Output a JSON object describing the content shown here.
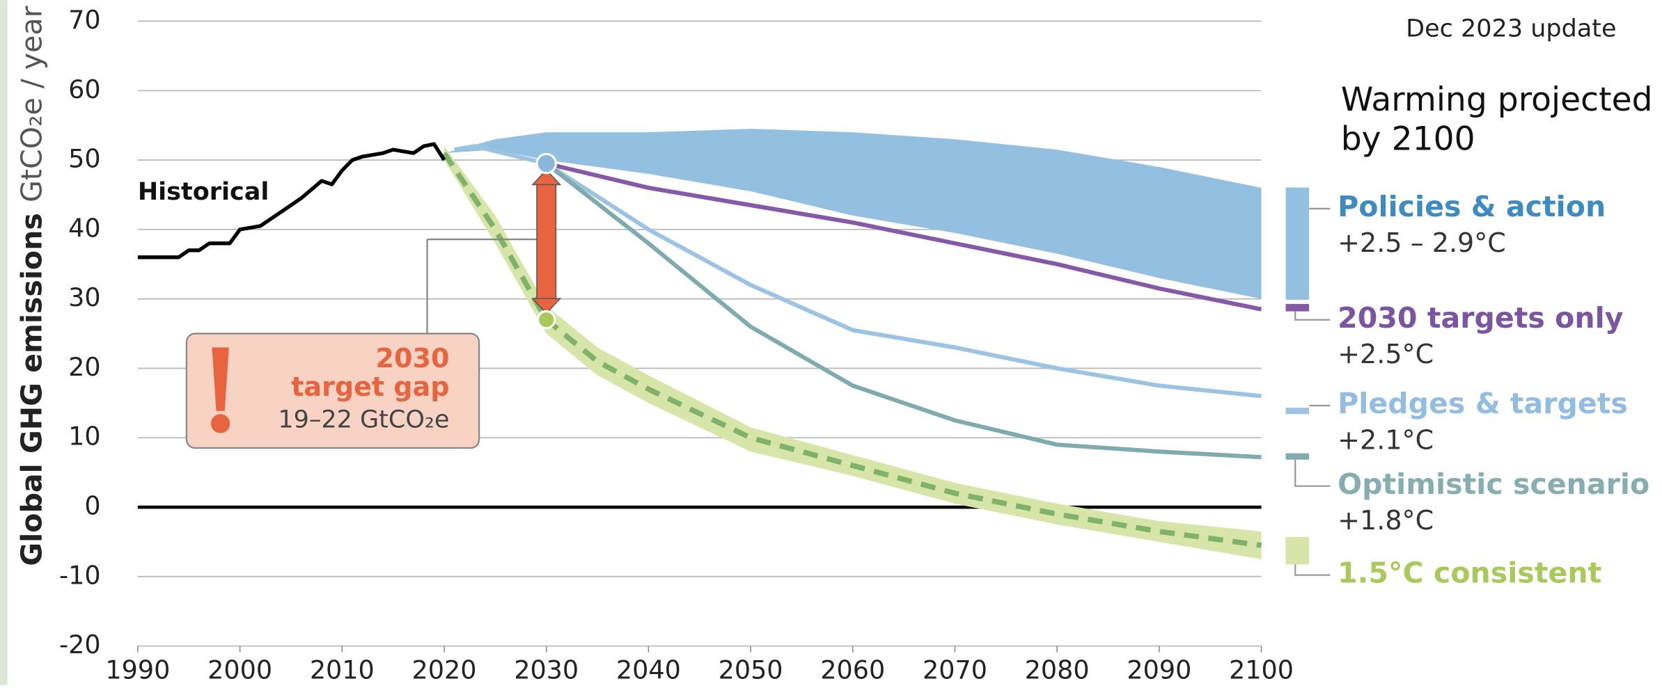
{
  "chart_data": {
    "type": "line",
    "y_label": "Global GHG emissions",
    "y_unit": "GtCO₂e / year",
    "note": "Dec 2023 update",
    "legend_title": [
      "Warming projected",
      "by 2100"
    ],
    "xlim": [
      1990,
      2100
    ],
    "xticks": [
      1990,
      2000,
      2010,
      2020,
      2030,
      2040,
      2050,
      2060,
      2070,
      2080,
      2090,
      2100
    ],
    "ylim": [
      -20,
      70
    ],
    "yticks": [
      -20,
      -10,
      0,
      10,
      20,
      30,
      40,
      50,
      60,
      70
    ],
    "grid": true,
    "series": [
      {
        "name": "Policies & action",
        "warming": "+2.5 – 2.9°C",
        "color": "#93c0e0",
        "text_color": "#3d8bbf",
        "x": [
          2020,
          2025,
          2030,
          2040,
          2050,
          2060,
          2070,
          2080,
          2090,
          2100
        ],
        "low": [
          51,
          51.5,
          50,
          48,
          45.5,
          42,
          39.5,
          36.5,
          33,
          30
        ],
        "high": [
          51,
          53,
          54,
          54,
          54.5,
          54,
          53,
          51.5,
          49,
          46
        ]
      },
      {
        "name": "2030 targets only",
        "warming": "+2.5°C",
        "color": "#8559a5",
        "text_color": "#7b54a2",
        "x": [
          2030,
          2040,
          2050,
          2060,
          2070,
          2080,
          2090,
          2100
        ],
        "values": [
          49.5,
          46,
          43.5,
          41,
          38,
          35,
          31.5,
          28.5
        ]
      },
      {
        "name": "Pledges & targets",
        "warming": "+2.1°C",
        "color": "#9dc3e2",
        "text_color": "#93bde0",
        "x": [
          2021,
          2023,
          2030,
          2040,
          2050,
          2060,
          2070,
          2080,
          2090,
          2100
        ],
        "values": [
          51.5,
          52,
          49.5,
          40,
          32,
          25.5,
          23,
          20,
          17.5,
          16
        ]
      },
      {
        "name": "Optimistic scenario",
        "warming": "+1.8°C",
        "color": "#7fabaf",
        "text_color": "#86aeb1",
        "x": [
          2030,
          2040,
          2050,
          2060,
          2070,
          2080,
          2090,
          2100
        ],
        "values": [
          49.5,
          38,
          26,
          17.5,
          12.5,
          9,
          8,
          7.2
        ]
      },
      {
        "name": "1.5°C consistent",
        "color": "#7fb26a",
        "band_color": "#d7e6a8",
        "text_color": "#a9c95a",
        "dashed": true,
        "x": [
          2020,
          2025,
          2030,
          2035,
          2040,
          2050,
          2060,
          2070,
          2080,
          2090,
          2100
        ],
        "values": [
          51,
          40,
          27,
          21,
          17,
          10,
          6,
          2,
          -1,
          -3.5,
          -5.5
        ],
        "low": [
          50,
          38,
          25,
          19,
          15,
          8,
          4.5,
          0.5,
          -2.5,
          -5,
          -7.5
        ],
        "high": [
          52,
          42,
          29,
          23,
          19,
          11.5,
          7.5,
          3.5,
          0.5,
          -2,
          -3.5
        ]
      },
      {
        "name": "Historical",
        "color": "#000000",
        "x": [
          1990,
          1994,
          1995,
          1996,
          1997,
          1999,
          2000,
          2002,
          2004,
          2006,
          2008,
          2009,
          2010,
          2011,
          2012,
          2014,
          2015,
          2017,
          2018,
          2019,
          2020
        ],
        "values": [
          36,
          36,
          37,
          37,
          38,
          38,
          40,
          40.5,
          42.5,
          44.5,
          47,
          46.5,
          48.5,
          50,
          50.5,
          51,
          51.5,
          51,
          52,
          52.3,
          50
        ]
      }
    ],
    "gap": {
      "label": [
        "2030",
        "target gap"
      ],
      "range": "19–22  GtCO₂e"
    }
  }
}
